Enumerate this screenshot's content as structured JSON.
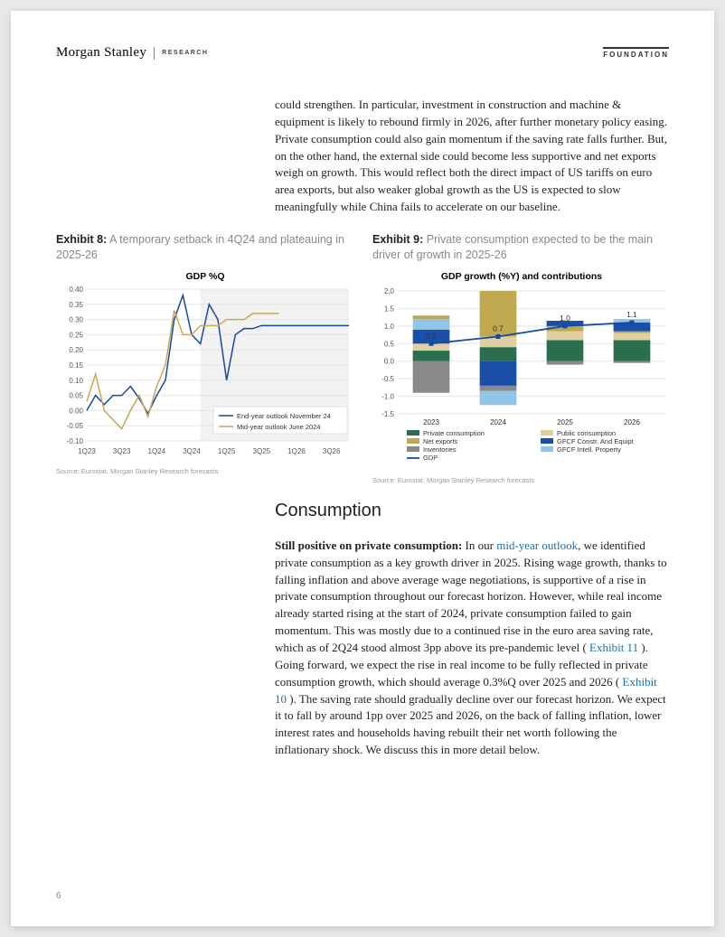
{
  "header": {
    "brand": "Morgan Stanley",
    "research": "RESEARCH",
    "foundation": "FOUNDATION"
  },
  "intro_paragraph": "could strengthen. In particular, investment in construction and machine & equipment is likely to rebound firmly in 2026, after further monetary policy easing. Private consumption could also gain momentum if the saving rate falls further. But, on the other hand, the external side could become less supportive and net exports weigh on growth. This would reflect both the direct impact of US tariffs on euro area exports, but also weaker global growth as the US is expected to slow meaningfully while China fails to accelerate on our baseline.",
  "exhibit8": {
    "label": "Exhibit 8:",
    "desc": "A temporary setback in 4Q24 and plateauing in 2025-26",
    "chart": {
      "title": "GDP %Q",
      "type": "line",
      "ylim": [
        -0.1,
        0.4
      ],
      "ytick_step": 0.05,
      "x_labels": [
        "1Q23",
        "3Q23",
        "1Q24",
        "3Q24",
        "1Q25",
        "3Q25",
        "1Q26",
        "3Q26"
      ],
      "shade_start_x": 3.25,
      "shade_end_x": 7.5,
      "series": [
        {
          "name": "End-year outlook November 24",
          "color": "#1449a3",
          "x": [
            0,
            0.25,
            0.5,
            0.75,
            1,
            1.25,
            1.5,
            1.75,
            2,
            2.25,
            2.5,
            2.75,
            3,
            3.25,
            3.5,
            3.75,
            4,
            4.25,
            4.5,
            4.75,
            5,
            5.25,
            5.5,
            5.75,
            6,
            6.25,
            6.5,
            6.75,
            7,
            7.25,
            7.5
          ],
          "y": [
            0.0,
            0.05,
            0.02,
            0.05,
            0.05,
            0.08,
            0.04,
            -0.01,
            0.05,
            0.1,
            0.3,
            0.38,
            0.25,
            0.22,
            0.35,
            0.3,
            0.1,
            0.25,
            0.27,
            0.27,
            0.28,
            0.28,
            0.28,
            0.28,
            0.28,
            0.28,
            0.28,
            0.28,
            0.28,
            0.28,
            0.28
          ]
        },
        {
          "name": "Mid-year outlook June 2024",
          "color": "#c8a855",
          "x": [
            0,
            0.25,
            0.5,
            0.75,
            1,
            1.25,
            1.5,
            1.75,
            2,
            2.25,
            2.5,
            2.75,
            3,
            3.25,
            3.5,
            3.75,
            4,
            4.25,
            4.5,
            4.75,
            5,
            5.25,
            5.5
          ],
          "y": [
            0.03,
            0.12,
            0.0,
            -0.03,
            -0.06,
            0.0,
            0.05,
            -0.02,
            0.08,
            0.15,
            0.33,
            0.25,
            0.25,
            0.28,
            0.28,
            0.28,
            0.3,
            0.3,
            0.3,
            0.32,
            0.32,
            0.32,
            0.32
          ]
        }
      ],
      "legend_pos": "bottom-right",
      "grid_color": "#e5e5e5",
      "background": "#ffffff"
    },
    "source": "Source: Eurostat, Morgan Stanley Research forecasts"
  },
  "exhibit9": {
    "label": "Exhibit 9:",
    "desc": "Private consumption expected to be the main driver of growth in 2025-26",
    "chart": {
      "title": "GDP growth (%Y) and contributions",
      "type": "stacked-bar-with-line",
      "ylim": [
        -1.5,
        2.0
      ],
      "ytick_step": 0.5,
      "categories": [
        "2023",
        "2024",
        "2025",
        "2026"
      ],
      "gdp_values": [
        0.5,
        0.7,
        1.0,
        1.1
      ],
      "stacks": [
        {
          "year": "2023",
          "segments": [
            {
              "name": "Private consumption",
              "color": "#2a6e4f",
              "from": 0.0,
              "to": 0.3
            },
            {
              "name": "Public consumption",
              "color": "#e0d0a0",
              "from": 0.3,
              "to": 0.5
            },
            {
              "name": "GFCF Constr. And Equipt",
              "color": "#1a4fa8",
              "from": 0.5,
              "to": 0.9
            },
            {
              "name": "GFCF Intell. Property",
              "color": "#8fc5e8",
              "from": 0.9,
              "to": 1.2
            },
            {
              "name": "Inventories",
              "color": "#8a8a8a",
              "from": 0.0,
              "to": -0.9
            },
            {
              "name": "Net exports",
              "color": "#c0a850",
              "from": 1.2,
              "to": 1.3
            }
          ]
        },
        {
          "year": "2024",
          "segments": [
            {
              "name": "Private consumption",
              "color": "#2a6e4f",
              "from": 0.0,
              "to": 0.4
            },
            {
              "name": "Public consumption",
              "color": "#e0d0a0",
              "from": 0.4,
              "to": 0.7
            },
            {
              "name": "Net exports",
              "color": "#c0a850",
              "from": 0.7,
              "to": 2.0
            },
            {
              "name": "GFCF Constr. And Equipt",
              "color": "#1a4fa8",
              "from": 0.0,
              "to": -0.7
            },
            {
              "name": "Inventories",
              "color": "#8a8a8a",
              "from": -0.7,
              "to": -0.85
            },
            {
              "name": "GFCF Intell. Property",
              "color": "#8fc5e8",
              "from": -0.85,
              "to": -1.25
            }
          ]
        },
        {
          "year": "2025",
          "segments": [
            {
              "name": "Private consumption",
              "color": "#2a6e4f",
              "from": 0.0,
              "to": 0.6
            },
            {
              "name": "Public consumption",
              "color": "#e0d0a0",
              "from": 0.6,
              "to": 0.85
            },
            {
              "name": "Net exports",
              "color": "#c0a850",
              "from": 0.85,
              "to": 1.0
            },
            {
              "name": "GFCF Constr. And Equipt",
              "color": "#1a4fa8",
              "from": 1.0,
              "to": 1.15
            },
            {
              "name": "Inventories",
              "color": "#8a8a8a",
              "from": 0.0,
              "to": -0.1
            }
          ]
        },
        {
          "year": "2026",
          "segments": [
            {
              "name": "Private consumption",
              "color": "#2a6e4f",
              "from": 0.0,
              "to": 0.6
            },
            {
              "name": "Public consumption",
              "color": "#e0d0a0",
              "from": 0.6,
              "to": 0.8
            },
            {
              "name": "Net exports",
              "color": "#c0a850",
              "from": 0.8,
              "to": 0.85
            },
            {
              "name": "GFCF Constr. And Equipt",
              "color": "#1a4fa8",
              "from": 0.85,
              "to": 1.1
            },
            {
              "name": "GFCF Intell. Property",
              "color": "#8fc5e8",
              "from": 1.1,
              "to": 1.2
            },
            {
              "name": "Inventories",
              "color": "#8a8a8a",
              "from": 0.0,
              "to": -0.05
            }
          ]
        }
      ],
      "legend": [
        {
          "name": "Private consumption",
          "color": "#2a6e4f"
        },
        {
          "name": "Public consumption",
          "color": "#e0d0a0"
        },
        {
          "name": "Net exports",
          "color": "#c0a850"
        },
        {
          "name": "GFCF Constr. And Equipt",
          "color": "#1a4fa8"
        },
        {
          "name": "Inventories",
          "color": "#8a8a8a"
        },
        {
          "name": "GFCF Intell. Property",
          "color": "#8fc5e8"
        },
        {
          "name": "GDP",
          "color": "#1449a3",
          "line": true
        }
      ]
    },
    "source": "Source: Eurostat, Morgan Stanley Research forecasts"
  },
  "section_title": "Consumption",
  "body": {
    "lead_bold": "Still positive on private consumption:",
    "p1a": " In our ",
    "link1": "mid-year outlook",
    "p1b": ", we identified private consumption as a key growth driver in 2025. Rising wage growth, thanks to falling inflation and above average wage negotiations, is supportive of a rise in private consumption throughout our forecast horizon. However, while real income already started rising at the start of 2024, private consumption failed to gain momentum. This was mostly due to a continued rise in the euro area saving rate, which as of 2Q24 stood almost 3pp above its pre-pandemic level ( ",
    "link2": "Exhibit 11 ",
    "p1c": "). Going forward, we expect the rise in real income to be fully reflected in private consumption growth, which should average 0.3%Q over 2025 and 2026 ( ",
    "link3": "Exhibit 10 ",
    "p1d": "). The saving rate should gradually decline over our forecast horizon. We expect it to fall by around 1pp over 2025 and 2026, on the back of falling inflation, lower interest rates and households having rebuilt their net worth following the inflationary shock. We discuss this in more detail below."
  },
  "page_number": "6"
}
